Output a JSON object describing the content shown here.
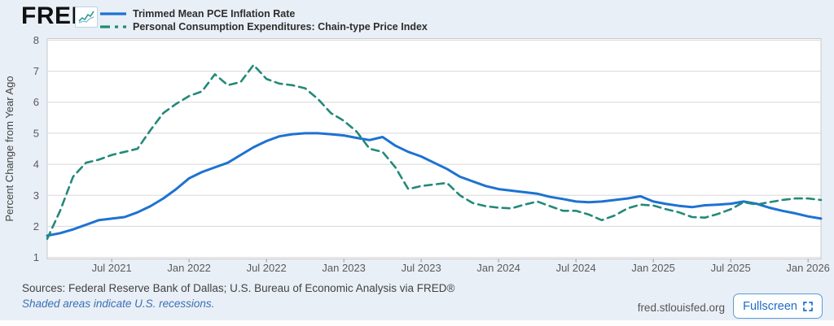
{
  "header": {
    "brand": "FRED",
    "registered": "®"
  },
  "chart_data": {
    "type": "line",
    "title": "",
    "xlabel": "",
    "ylabel": "Percent Change from Year Ago",
    "ylim": [
      0.95,
      8.05
    ],
    "yticks": [
      1,
      2,
      3,
      4,
      5,
      6,
      7,
      8
    ],
    "grid": true,
    "legend_position": "top-left",
    "x_start_month": "Feb 2021",
    "x_end_month": "Feb 2026",
    "xtick_labels": [
      "Jul 2021",
      "Jan 2022",
      "Jul 2022",
      "Jan 2023",
      "Jul 2023",
      "Jan 2024",
      "Jul 2024",
      "Jan 2025",
      "Jul 2025",
      "Jan 2026"
    ],
    "xtick_month_indices": [
      5,
      11,
      17,
      23,
      29,
      35,
      41,
      47,
      53,
      59
    ],
    "series": [
      {
        "name": "Trimmed Mean PCE Inflation Rate",
        "color": "#1d72d2",
        "dash": "solid",
        "values": [
          1.7,
          1.78,
          1.9,
          2.05,
          2.2,
          2.25,
          2.3,
          2.45,
          2.65,
          2.9,
          3.2,
          3.55,
          3.75,
          3.9,
          4.05,
          4.3,
          4.55,
          4.75,
          4.9,
          4.97,
          5.0,
          5.0,
          4.97,
          4.93,
          4.85,
          4.78,
          4.88,
          4.6,
          4.4,
          4.25,
          4.05,
          3.85,
          3.6,
          3.45,
          3.3,
          3.2,
          3.15,
          3.1,
          3.05,
          2.95,
          2.88,
          2.8,
          2.78,
          2.8,
          2.85,
          2.9,
          2.97,
          2.8,
          2.72,
          2.66,
          2.62,
          2.68,
          2.7,
          2.73,
          2.8,
          2.73,
          2.6,
          2.5,
          2.42,
          2.32,
          2.25
        ]
      },
      {
        "name": "Personal Consumption Expenditures: Chain-type Price Index",
        "color": "#23897a",
        "dash": "dashed",
        "values": [
          1.6,
          2.5,
          3.6,
          4.05,
          4.15,
          4.3,
          4.4,
          4.5,
          5.1,
          5.65,
          5.95,
          6.2,
          6.35,
          6.9,
          6.55,
          6.65,
          7.2,
          6.75,
          6.6,
          6.55,
          6.45,
          6.1,
          5.65,
          5.4,
          5.05,
          4.5,
          4.4,
          3.9,
          3.2,
          3.3,
          3.35,
          3.4,
          3.0,
          2.75,
          2.65,
          2.6,
          2.58,
          2.7,
          2.8,
          2.65,
          2.5,
          2.5,
          2.38,
          2.2,
          2.35,
          2.58,
          2.7,
          2.67,
          2.55,
          2.45,
          2.3,
          2.28,
          2.4,
          2.55,
          2.78,
          2.7,
          2.78,
          2.85,
          2.9,
          2.9,
          2.85
        ]
      }
    ]
  },
  "footer": {
    "sources": "Sources: Federal Reserve Bank of Dallas; U.S. Bureau of Economic Analysis via FRED®",
    "recession_note": "Shaded areas indicate U.S. recessions.",
    "site": "fred.stlouisfed.org",
    "fullscreen_label": "Fullscreen"
  },
  "colors": {
    "background": "#e9eff6",
    "plot_background": "#ffffff",
    "gridline": "#d8d8d8",
    "plot_border": "#c9c9c9",
    "tick_label": "#5a5a5a",
    "axis_title": "#444444",
    "button_accent": "#1e6cc8"
  }
}
